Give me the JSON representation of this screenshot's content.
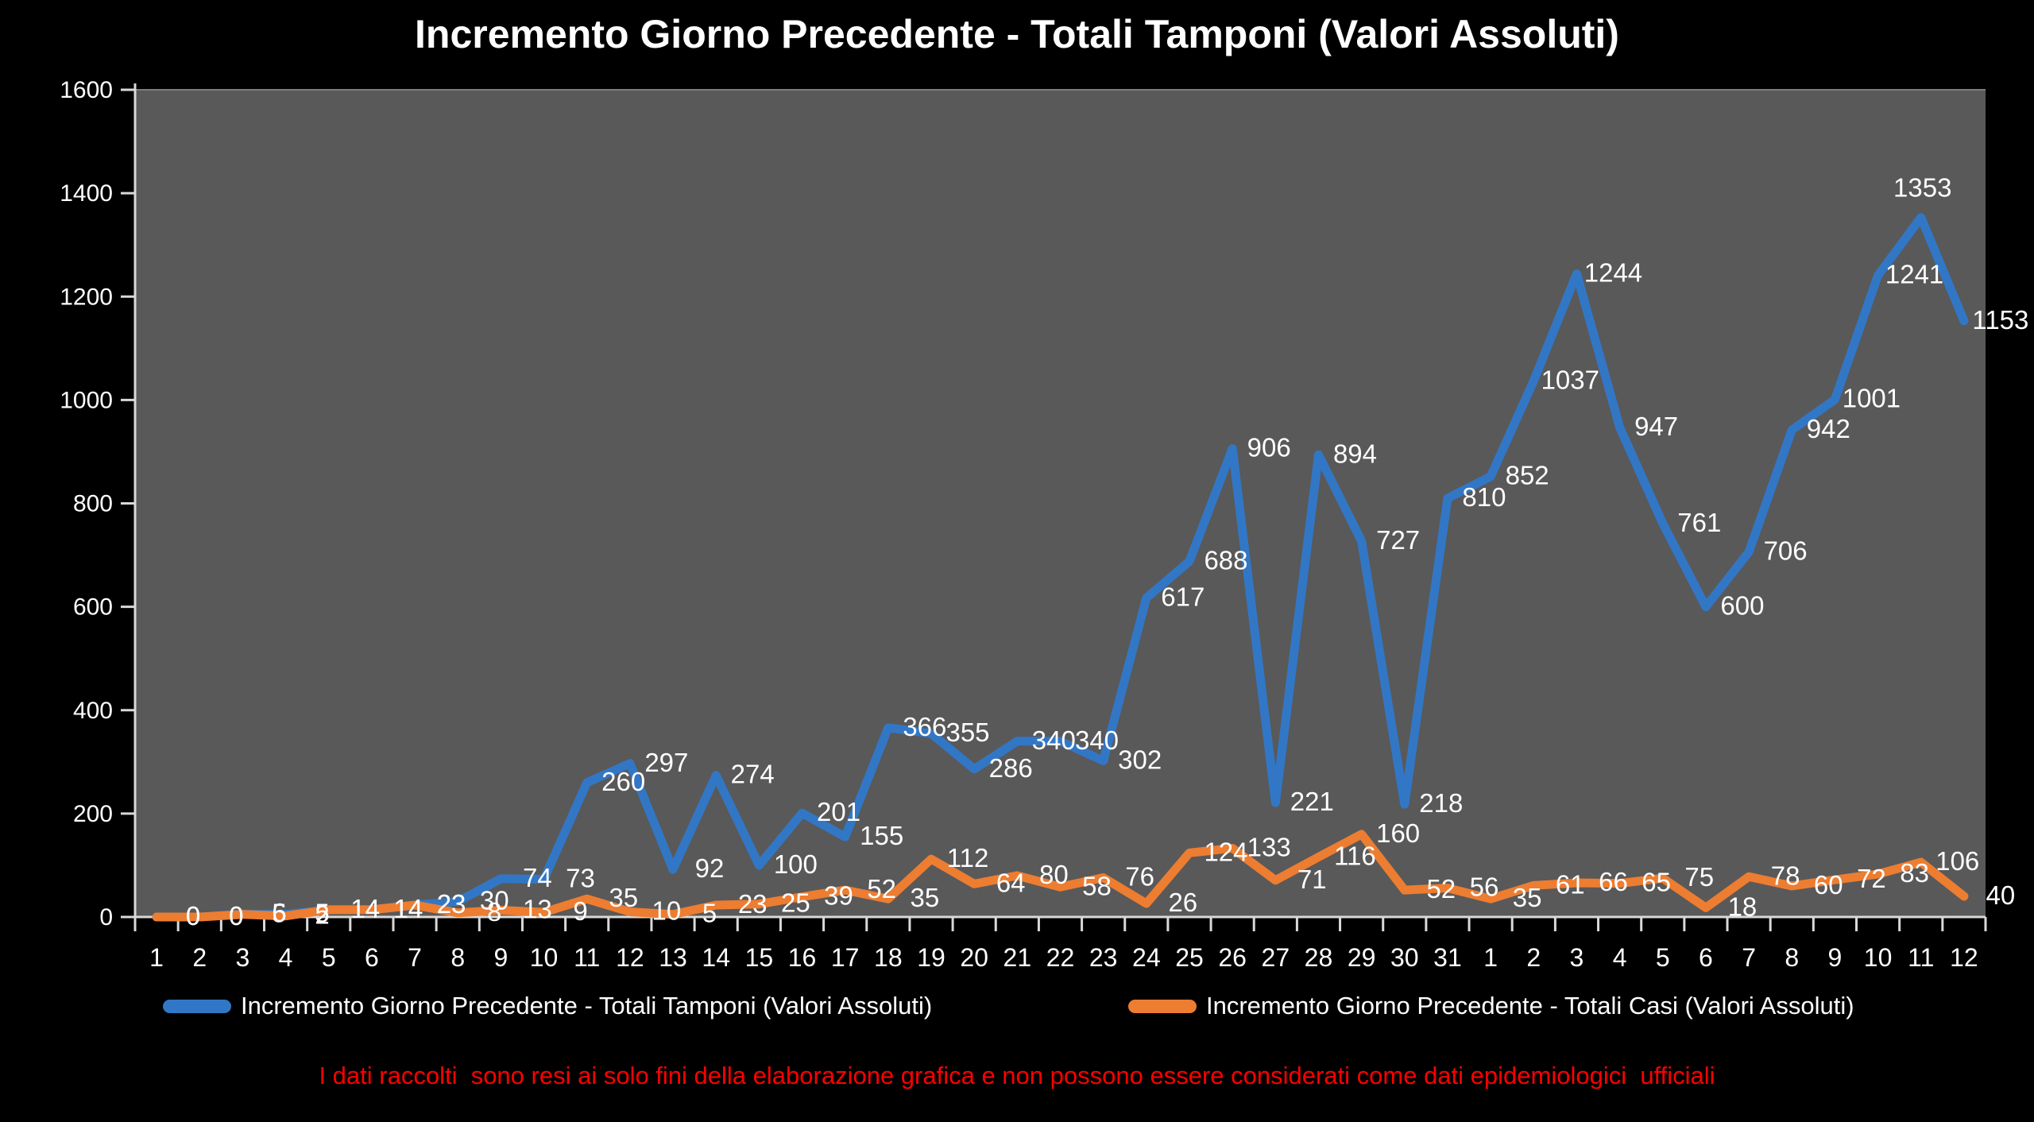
{
  "title": "Incremento Giorno Precedente - Totali Tamponi (Valori Assoluti)",
  "disclaimer": "I dati raccolti  sono resi ai solo fini della elaborazione grafica e non possono essere considerati come dati epidemiologici  ufficiali",
  "colors": {
    "background": "#000000",
    "plot_background": "#595959",
    "axis": "#d9d9d9",
    "text": "#ffffff",
    "disclaimer": "#ff0000",
    "tamponi_blue": "#3277c6",
    "casi_orange": "#ed7d31"
  },
  "chart_data": {
    "type": "line",
    "title": "Incremento Giorno Precedente - Totali Tamponi (Valori Assoluti)",
    "xlabel": "",
    "ylabel": "",
    "ylim": [
      0,
      1600
    ],
    "yticks": [
      0,
      200,
      400,
      600,
      800,
      1000,
      1200,
      1400,
      1600
    ],
    "grid": false,
    "legend_position": "bottom",
    "categories": [
      "1",
      "2",
      "3",
      "4",
      "5",
      "6",
      "7",
      "8",
      "9",
      "10",
      "11",
      "12",
      "13",
      "14",
      "15",
      "16",
      "17",
      "18",
      "19",
      "20",
      "21",
      "22",
      "23",
      "24",
      "25",
      "26",
      "27",
      "28",
      "29",
      "30",
      "31",
      "1",
      "2",
      "3",
      "4",
      "5",
      "6",
      "7",
      "8",
      "9",
      "10",
      "11",
      "12"
    ],
    "series": [
      {
        "name": "Incremento Giorno Precedente - Totali Tamponi (Valori Assoluti)",
        "color": "#3277c6",
        "values": [
          0,
          0,
          6,
          5,
          14,
          14,
          23,
          30,
          74,
          73,
          260,
          297,
          92,
          274,
          100,
          201,
          155,
          366,
          355,
          286,
          340,
          340,
          302,
          617,
          688,
          906,
          221,
          894,
          727,
          218,
          810,
          852,
          1037,
          1244,
          947,
          761,
          600,
          706,
          942,
          1001,
          1241,
          1353,
          1153
        ]
      },
      {
        "name": "Incremento Giorno Precedente - Totali Casi (Valori Assoluti)",
        "color": "#ed7d31",
        "values": [
          0,
          0,
          5,
          2,
          14,
          14,
          23,
          8,
          13,
          9,
          35,
          10,
          5,
          23,
          25,
          39,
          52,
          35,
          112,
          64,
          80,
          58,
          76,
          26,
          124,
          133,
          71,
          116,
          160,
          52,
          56,
          35,
          61,
          66,
          65,
          75,
          18,
          78,
          60,
          72,
          83,
          106,
          40
        ]
      }
    ]
  }
}
